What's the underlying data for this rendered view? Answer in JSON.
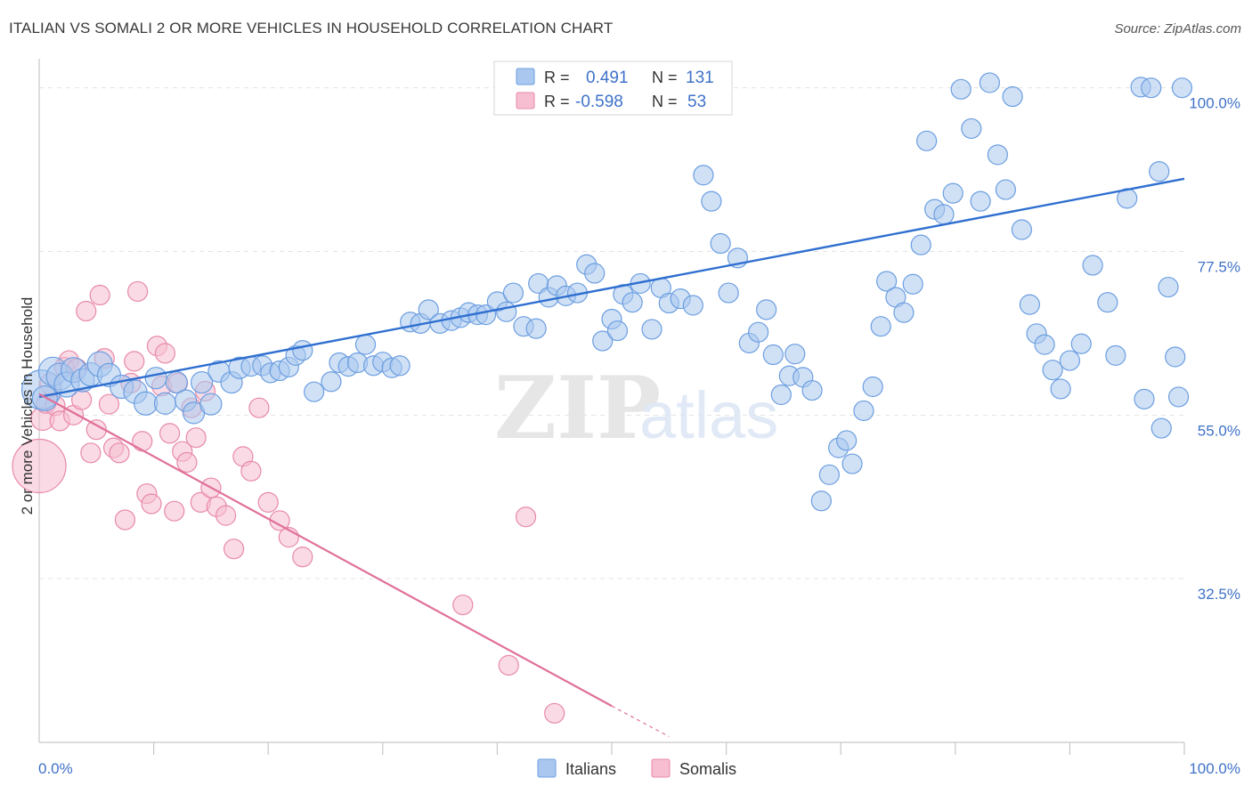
{
  "chart_data": {
    "type": "scatter",
    "title": "ITALIAN VS SOMALI 2 OR MORE VEHICLES IN HOUSEHOLD CORRELATION CHART",
    "source": "Source: ZipAtlas.com",
    "xlabel": "",
    "ylabel": "2 or more Vehicles in Household",
    "xlim": [
      0,
      100
    ],
    "ylim": [
      10,
      104
    ],
    "y_ticks": [
      {
        "value": 100.0,
        "label": "100.0%"
      },
      {
        "value": 77.5,
        "label": "77.5%"
      },
      {
        "value": 55.0,
        "label": "55.0%"
      },
      {
        "value": 32.5,
        "label": "32.5%"
      }
    ],
    "x_tick_labels": {
      "left": "0.0%",
      "right": "100.0%"
    },
    "watermark": {
      "zip": "ZIP",
      "atlas": "atlas"
    },
    "legend_position": "top-center",
    "stats": [
      {
        "r_label": "R =",
        "r_value": "0.491",
        "n_label": "N =",
        "n_value": "131"
      },
      {
        "r_label": "R =",
        "r_value": "-0.598",
        "n_label": "N =",
        "n_value": "53"
      }
    ],
    "colors": {
      "italians_fill": "#aac8ef",
      "italians_stroke": "#6c9ee0",
      "italians_line": "#2f6fd0",
      "somalis_fill": "#f6bed0",
      "somalis_stroke": "#e889a8",
      "somalis_line": "#e0709a",
      "grid": "#e3e3e3",
      "tick_text": "#3f72c8"
    },
    "series": [
      {
        "name": "Italians",
        "trend": {
          "x0": 0,
          "y0": 57.5,
          "x1": 100,
          "y1": 87.5
        },
        "points": [
          [
            0.2,
            58.5,
            22
          ],
          [
            0.5,
            57.3,
            14
          ],
          [
            1.2,
            61.0,
            16
          ],
          [
            1.8,
            60.3,
            15
          ],
          [
            2.4,
            59.2,
            14
          ],
          [
            3.0,
            61.2,
            14
          ],
          [
            3.8,
            59.8,
            13
          ],
          [
            4.5,
            60.6,
            13
          ],
          [
            5.3,
            62.0,
            14
          ],
          [
            6.1,
            60.5,
            13
          ],
          [
            7.2,
            58.9,
            13
          ],
          [
            8.4,
            58.2,
            13
          ],
          [
            9.3,
            56.6,
            13
          ],
          [
            10.2,
            60.1,
            12
          ],
          [
            11.0,
            56.6,
            12
          ],
          [
            12.0,
            59.5,
            12
          ],
          [
            12.8,
            57.0,
            12
          ],
          [
            13.5,
            55.3,
            12
          ],
          [
            14.2,
            59.5,
            12
          ],
          [
            15.0,
            56.5,
            12
          ],
          [
            15.7,
            61.0,
            12
          ],
          [
            16.8,
            59.5,
            12
          ],
          [
            17.5,
            61.5,
            12
          ],
          [
            18.5,
            61.7,
            11
          ],
          [
            19.5,
            61.8,
            11
          ],
          [
            20.2,
            60.8,
            11
          ],
          [
            21.0,
            61.1,
            11
          ],
          [
            21.8,
            61.6,
            11
          ],
          [
            22.4,
            63.2,
            11
          ],
          [
            23.0,
            63.9,
            11
          ],
          [
            24.0,
            58.2,
            11
          ],
          [
            25.5,
            59.6,
            11
          ],
          [
            26.2,
            62.2,
            11
          ],
          [
            27.0,
            61.7,
            11
          ],
          [
            27.8,
            62.2,
            11
          ],
          [
            28.5,
            64.7,
            11
          ],
          [
            29.2,
            61.8,
            11
          ],
          [
            30.0,
            62.3,
            11
          ],
          [
            30.8,
            61.5,
            11
          ],
          [
            31.5,
            61.8,
            11
          ],
          [
            32.4,
            67.8,
            11
          ],
          [
            33.3,
            67.6,
            11
          ],
          [
            34.0,
            69.5,
            11
          ],
          [
            35.0,
            67.6,
            11
          ],
          [
            36.0,
            68.0,
            11
          ],
          [
            36.8,
            68.4,
            11
          ],
          [
            37.5,
            69.1,
            11
          ],
          [
            38.3,
            68.8,
            11
          ],
          [
            39.0,
            68.8,
            11
          ],
          [
            40.0,
            70.6,
            11
          ],
          [
            40.8,
            69.2,
            11
          ],
          [
            41.4,
            71.8,
            11
          ],
          [
            42.3,
            67.2,
            11
          ],
          [
            43.4,
            66.9,
            11
          ],
          [
            43.6,
            73.1,
            11
          ],
          [
            44.5,
            71.2,
            11
          ],
          [
            45.2,
            72.8,
            11
          ],
          [
            46.0,
            71.4,
            11
          ],
          [
            47.0,
            71.8,
            11
          ],
          [
            47.8,
            75.7,
            11
          ],
          [
            48.5,
            74.5,
            11
          ],
          [
            49.2,
            65.2,
            11
          ],
          [
            50.0,
            68.2,
            11
          ],
          [
            50.5,
            66.6,
            11
          ],
          [
            51.0,
            71.6,
            11
          ],
          [
            51.8,
            70.5,
            11
          ],
          [
            52.5,
            73.1,
            11
          ],
          [
            53.5,
            66.8,
            11
          ],
          [
            54.3,
            72.5,
            11
          ],
          [
            55.0,
            70.4,
            11
          ],
          [
            56.0,
            71.0,
            11
          ],
          [
            57.1,
            70.1,
            11
          ],
          [
            58.0,
            88.0,
            11
          ],
          [
            58.7,
            84.4,
            11
          ],
          [
            59.5,
            78.6,
            11
          ],
          [
            60.2,
            71.8,
            11
          ],
          [
            61.0,
            76.6,
            11
          ],
          [
            62.0,
            64.9,
            11
          ],
          [
            62.8,
            66.4,
            11
          ],
          [
            63.5,
            69.5,
            11
          ],
          [
            64.1,
            63.3,
            11
          ],
          [
            64.8,
            57.8,
            11
          ],
          [
            65.5,
            60.4,
            11
          ],
          [
            66.0,
            63.4,
            11
          ],
          [
            66.7,
            60.2,
            11
          ],
          [
            67.5,
            58.4,
            11
          ],
          [
            68.3,
            43.2,
            11
          ],
          [
            69.0,
            46.8,
            11
          ],
          [
            69.8,
            50.5,
            11
          ],
          [
            70.5,
            51.5,
            11
          ],
          [
            71.0,
            48.3,
            11
          ],
          [
            72.0,
            55.6,
            11
          ],
          [
            72.8,
            58.9,
            11
          ],
          [
            73.5,
            67.2,
            11
          ],
          [
            74.0,
            73.4,
            11
          ],
          [
            74.8,
            71.2,
            11
          ],
          [
            75.5,
            69.1,
            11
          ],
          [
            76.3,
            73.0,
            11
          ],
          [
            77.0,
            78.4,
            11
          ],
          [
            77.5,
            92.7,
            11
          ],
          [
            78.2,
            83.3,
            11
          ],
          [
            79.0,
            82.6,
            11
          ],
          [
            79.8,
            85.5,
            11
          ],
          [
            80.5,
            99.8,
            11
          ],
          [
            81.4,
            94.4,
            11
          ],
          [
            82.2,
            84.4,
            11
          ],
          [
            83.0,
            100.7,
            11
          ],
          [
            83.7,
            90.8,
            11
          ],
          [
            84.4,
            86.0,
            11
          ],
          [
            85.0,
            98.8,
            11
          ],
          [
            85.8,
            80.5,
            11
          ],
          [
            86.5,
            70.2,
            11
          ],
          [
            87.1,
            66.2,
            11
          ],
          [
            87.8,
            64.7,
            11
          ],
          [
            88.5,
            61.2,
            11
          ],
          [
            89.2,
            58.6,
            11
          ],
          [
            90.0,
            62.5,
            11
          ],
          [
            91.0,
            64.8,
            11
          ],
          [
            92.0,
            75.6,
            11
          ],
          [
            93.3,
            70.5,
            11
          ],
          [
            94.0,
            63.2,
            11
          ],
          [
            95.0,
            84.8,
            11
          ],
          [
            96.2,
            100.1,
            11
          ],
          [
            97.1,
            100.0,
            11
          ],
          [
            97.8,
            88.5,
            11
          ],
          [
            98.6,
            72.6,
            11
          ],
          [
            99.2,
            63.0,
            11
          ],
          [
            99.8,
            100.0,
            11
          ],
          [
            99.5,
            57.5,
            11
          ],
          [
            98.0,
            53.2,
            11
          ],
          [
            96.5,
            57.2,
            11
          ]
        ]
      },
      {
        "name": "Somalis",
        "trend": {
          "x0": 0,
          "y0": 57.9,
          "x1": 50,
          "y1": 15.0,
          "dash_to_x": 55,
          "dash_to_y": 10.8
        },
        "points": [
          [
            0.0,
            48.0,
            30
          ],
          [
            0.3,
            54.5,
            13
          ],
          [
            0.6,
            56.6,
            11
          ],
          [
            1.0,
            59.3,
            12
          ],
          [
            1.4,
            56.3,
            11
          ],
          [
            1.8,
            54.2,
            11
          ],
          [
            2.2,
            61.6,
            11
          ],
          [
            2.6,
            62.5,
            11
          ],
          [
            3.0,
            55.0,
            11
          ],
          [
            3.3,
            61.4,
            11
          ],
          [
            3.7,
            57.1,
            11
          ],
          [
            4.1,
            69.3,
            11
          ],
          [
            4.5,
            49.8,
            11
          ],
          [
            5.0,
            53.0,
            11
          ],
          [
            5.3,
            71.5,
            11
          ],
          [
            5.7,
            62.8,
            11
          ],
          [
            6.1,
            56.5,
            11
          ],
          [
            6.5,
            50.5,
            11
          ],
          [
            7.0,
            49.8,
            11
          ],
          [
            7.5,
            40.6,
            11
          ],
          [
            8.0,
            59.4,
            11
          ],
          [
            8.3,
            62.4,
            11
          ],
          [
            8.6,
            72.0,
            11
          ],
          [
            9.0,
            51.4,
            11
          ],
          [
            9.4,
            44.2,
            11
          ],
          [
            9.8,
            42.8,
            11
          ],
          [
            10.3,
            64.5,
            11
          ],
          [
            10.7,
            59.0,
            11
          ],
          [
            11.0,
            63.5,
            11
          ],
          [
            11.4,
            52.5,
            11
          ],
          [
            11.8,
            41.8,
            11
          ],
          [
            12.1,
            59.4,
            11
          ],
          [
            12.5,
            50.0,
            11
          ],
          [
            12.9,
            48.5,
            11
          ],
          [
            13.3,
            56.0,
            11
          ],
          [
            13.7,
            51.9,
            11
          ],
          [
            14.1,
            43.0,
            11
          ],
          [
            14.5,
            58.3,
            11
          ],
          [
            15.0,
            45.0,
            11
          ],
          [
            15.5,
            42.4,
            11
          ],
          [
            16.3,
            41.2,
            11
          ],
          [
            17.0,
            36.6,
            11
          ],
          [
            17.8,
            49.3,
            11
          ],
          [
            18.5,
            47.3,
            11
          ],
          [
            19.2,
            56.0,
            11
          ],
          [
            20.0,
            43.0,
            11
          ],
          [
            21.0,
            40.5,
            11
          ],
          [
            21.8,
            38.2,
            11
          ],
          [
            23.0,
            35.5,
            11
          ],
          [
            37.0,
            28.9,
            11
          ],
          [
            41.0,
            20.6,
            11
          ],
          [
            45.0,
            14.0,
            11
          ],
          [
            42.5,
            41.0,
            11
          ]
        ]
      }
    ]
  }
}
